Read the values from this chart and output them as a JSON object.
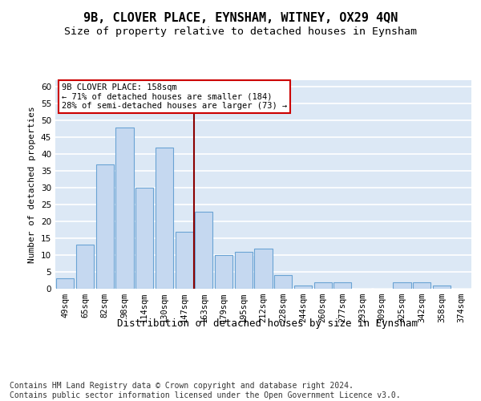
{
  "title": "9B, CLOVER PLACE, EYNSHAM, WITNEY, OX29 4QN",
  "subtitle": "Size of property relative to detached houses in Eynsham",
  "xlabel": "Distribution of detached houses by size in Eynsham",
  "ylabel": "Number of detached properties",
  "categories": [
    "49sqm",
    "65sqm",
    "82sqm",
    "98sqm",
    "114sqm",
    "130sqm",
    "147sqm",
    "163sqm",
    "179sqm",
    "195sqm",
    "212sqm",
    "228sqm",
    "244sqm",
    "260sqm",
    "277sqm",
    "293sqm",
    "309sqm",
    "325sqm",
    "342sqm",
    "358sqm",
    "374sqm"
  ],
  "values": [
    3,
    13,
    37,
    48,
    30,
    42,
    17,
    23,
    10,
    11,
    12,
    4,
    1,
    2,
    2,
    0,
    0,
    2,
    2,
    1,
    0
  ],
  "bar_color": "#c5d8f0",
  "bar_edge_color": "#6aa3d4",
  "highlight_index": 7,
  "highlight_line_color": "#8b0000",
  "annotation_line1": "9B CLOVER PLACE: 158sqm",
  "annotation_line2": "← 71% of detached houses are smaller (184)",
  "annotation_line3": "28% of semi-detached houses are larger (73) →",
  "annotation_box_color": "#ffffff",
  "annotation_box_edge_color": "#cc0000",
  "ylim": [
    0,
    62
  ],
  "yticks": [
    0,
    5,
    10,
    15,
    20,
    25,
    30,
    35,
    40,
    45,
    50,
    55,
    60
  ],
  "background_color": "#dce8f5",
  "grid_color": "#ffffff",
  "title_fontsize": 11,
  "subtitle_fontsize": 9.5,
  "xlabel_fontsize": 9,
  "ylabel_fontsize": 8,
  "tick_fontsize": 7.5,
  "footer_text": "Contains HM Land Registry data © Crown copyright and database right 2024.\nContains public sector information licensed under the Open Government Licence v3.0.",
  "footer_fontsize": 7
}
